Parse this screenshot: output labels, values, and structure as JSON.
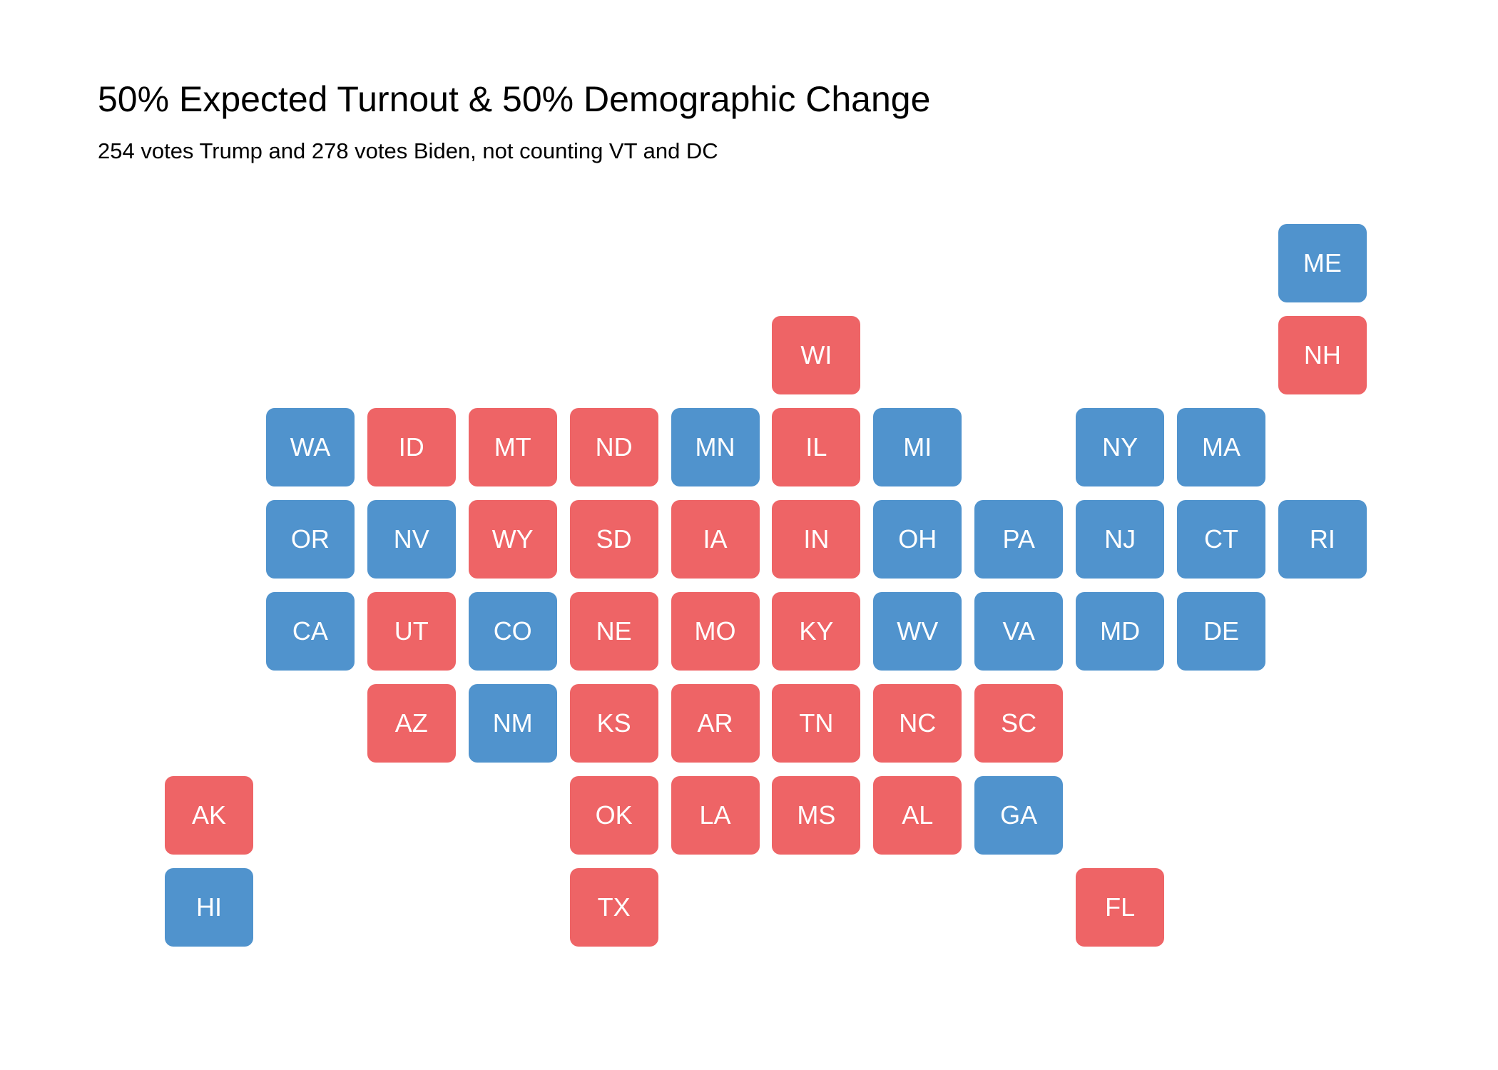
{
  "title": "50% Expected Turnout & 50% Demographic Change",
  "subtitle": "254 votes Trump and 278 votes Biden, not counting VT and DC",
  "colors": {
    "trump": "#ee6466",
    "biden": "#5093cd"
  },
  "chart_data": {
    "type": "tile-map",
    "states": [
      {
        "abbr": "ME",
        "col": 11,
        "row": 0,
        "winner": "biden"
      },
      {
        "abbr": "WI",
        "col": 6,
        "row": 1,
        "winner": "trump"
      },
      {
        "abbr": "NH",
        "col": 11,
        "row": 1,
        "winner": "trump"
      },
      {
        "abbr": "WA",
        "col": 1,
        "row": 2,
        "winner": "biden"
      },
      {
        "abbr": "ID",
        "col": 2,
        "row": 2,
        "winner": "trump"
      },
      {
        "abbr": "MT",
        "col": 3,
        "row": 2,
        "winner": "trump"
      },
      {
        "abbr": "ND",
        "col": 4,
        "row": 2,
        "winner": "trump"
      },
      {
        "abbr": "MN",
        "col": 5,
        "row": 2,
        "winner": "biden"
      },
      {
        "abbr": "IL",
        "col": 6,
        "row": 2,
        "winner": "trump"
      },
      {
        "abbr": "MI",
        "col": 7,
        "row": 2,
        "winner": "biden"
      },
      {
        "abbr": "NY",
        "col": 9,
        "row": 2,
        "winner": "biden"
      },
      {
        "abbr": "MA",
        "col": 10,
        "row": 2,
        "winner": "biden"
      },
      {
        "abbr": "OR",
        "col": 1,
        "row": 3,
        "winner": "biden"
      },
      {
        "abbr": "NV",
        "col": 2,
        "row": 3,
        "winner": "biden"
      },
      {
        "abbr": "WY",
        "col": 3,
        "row": 3,
        "winner": "trump"
      },
      {
        "abbr": "SD",
        "col": 4,
        "row": 3,
        "winner": "trump"
      },
      {
        "abbr": "IA",
        "col": 5,
        "row": 3,
        "winner": "trump"
      },
      {
        "abbr": "IN",
        "col": 6,
        "row": 3,
        "winner": "trump"
      },
      {
        "abbr": "OH",
        "col": 7,
        "row": 3,
        "winner": "biden"
      },
      {
        "abbr": "PA",
        "col": 8,
        "row": 3,
        "winner": "biden"
      },
      {
        "abbr": "NJ",
        "col": 9,
        "row": 3,
        "winner": "biden"
      },
      {
        "abbr": "CT",
        "col": 10,
        "row": 3,
        "winner": "biden"
      },
      {
        "abbr": "RI",
        "col": 11,
        "row": 3,
        "winner": "biden"
      },
      {
        "abbr": "CA",
        "col": 1,
        "row": 4,
        "winner": "biden"
      },
      {
        "abbr": "UT",
        "col": 2,
        "row": 4,
        "winner": "trump"
      },
      {
        "abbr": "CO",
        "col": 3,
        "row": 4,
        "winner": "biden"
      },
      {
        "abbr": "NE",
        "col": 4,
        "row": 4,
        "winner": "trump"
      },
      {
        "abbr": "MO",
        "col": 5,
        "row": 4,
        "winner": "trump"
      },
      {
        "abbr": "KY",
        "col": 6,
        "row": 4,
        "winner": "trump"
      },
      {
        "abbr": "WV",
        "col": 7,
        "row": 4,
        "winner": "biden"
      },
      {
        "abbr": "VA",
        "col": 8,
        "row": 4,
        "winner": "biden"
      },
      {
        "abbr": "MD",
        "col": 9,
        "row": 4,
        "winner": "biden"
      },
      {
        "abbr": "DE",
        "col": 10,
        "row": 4,
        "winner": "biden"
      },
      {
        "abbr": "AZ",
        "col": 2,
        "row": 5,
        "winner": "trump"
      },
      {
        "abbr": "NM",
        "col": 3,
        "row": 5,
        "winner": "biden"
      },
      {
        "abbr": "KS",
        "col": 4,
        "row": 5,
        "winner": "trump"
      },
      {
        "abbr": "AR",
        "col": 5,
        "row": 5,
        "winner": "trump"
      },
      {
        "abbr": "TN",
        "col": 6,
        "row": 5,
        "winner": "trump"
      },
      {
        "abbr": "NC",
        "col": 7,
        "row": 5,
        "winner": "trump"
      },
      {
        "abbr": "SC",
        "col": 8,
        "row": 5,
        "winner": "trump"
      },
      {
        "abbr": "AK",
        "col": 0,
        "row": 6,
        "winner": "trump"
      },
      {
        "abbr": "OK",
        "col": 4,
        "row": 6,
        "winner": "trump"
      },
      {
        "abbr": "LA",
        "col": 5,
        "row": 6,
        "winner": "trump"
      },
      {
        "abbr": "MS",
        "col": 6,
        "row": 6,
        "winner": "trump"
      },
      {
        "abbr": "AL",
        "col": 7,
        "row": 6,
        "winner": "trump"
      },
      {
        "abbr": "GA",
        "col": 8,
        "row": 6,
        "winner": "biden"
      },
      {
        "abbr": "HI",
        "col": 0,
        "row": 7,
        "winner": "biden"
      },
      {
        "abbr": "TX",
        "col": 4,
        "row": 7,
        "winner": "trump"
      },
      {
        "abbr": "FL",
        "col": 9,
        "row": 7,
        "winner": "trump"
      }
    ]
  }
}
